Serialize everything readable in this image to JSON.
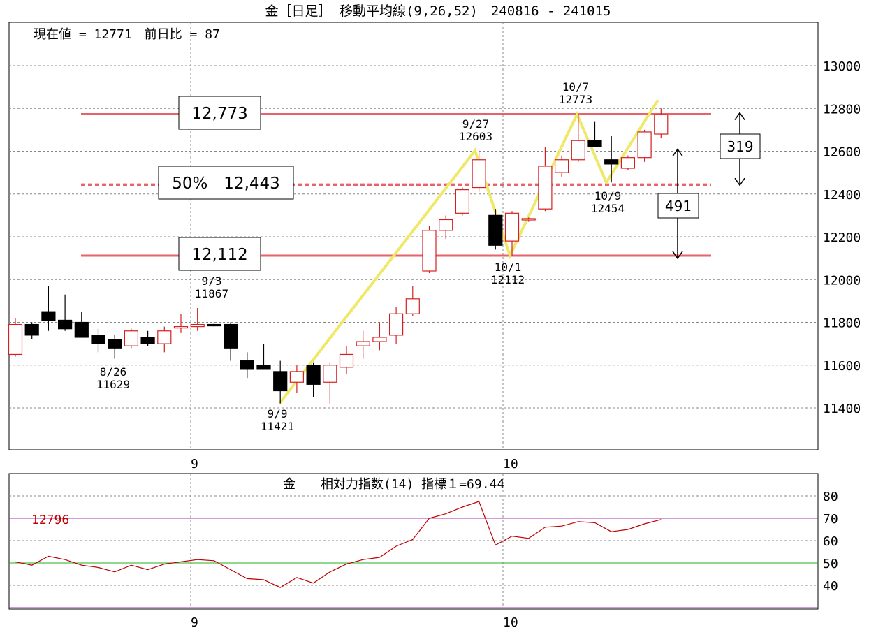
{
  "chart_data": [
    {
      "type": "candlestick",
      "title": "金［日足］ 移動平均線(9,26,52)　240816 - 241015",
      "header_info": "現在値 = 12771　前日比 = 87",
      "ylim": [
        11200,
        13200
      ],
      "yticks": [
        "11400",
        "11600",
        "11800",
        "12000",
        "12200",
        "12400",
        "12600",
        "12800",
        "13000"
      ],
      "ytick_values": [
        11400,
        11600,
        11800,
        12000,
        12200,
        12400,
        12600,
        12800,
        13000
      ],
      "xtick_labels": [
        "9",
        "10"
      ],
      "grid": true,
      "candles": [
        {
          "o": 11650,
          "h": 11820,
          "l": 11640,
          "c": 11790
        },
        {
          "o": 11790,
          "h": 11800,
          "l": 11720,
          "c": 11740
        },
        {
          "o": 11850,
          "h": 11970,
          "l": 11760,
          "c": 11810
        },
        {
          "o": 11810,
          "h": 11930,
          "l": 11760,
          "c": 11770
        },
        {
          "o": 11800,
          "h": 11850,
          "l": 11730,
          "c": 11730
        },
        {
          "o": 11740,
          "h": 11770,
          "l": 11660,
          "c": 11700
        },
        {
          "o": 11720,
          "h": 11740,
          "l": 11630,
          "c": 11680
        },
        {
          "o": 11690,
          "h": 11770,
          "l": 11680,
          "c": 11760
        },
        {
          "o": 11730,
          "h": 11760,
          "l": 11690,
          "c": 11700
        },
        {
          "o": 11700,
          "h": 11780,
          "l": 11660,
          "c": 11760
        },
        {
          "o": 11780,
          "h": 11840,
          "l": 11750,
          "c": 11780
        },
        {
          "o": 11780,
          "h": 11867,
          "l": 11760,
          "c": 11790
        },
        {
          "o": 11790,
          "h": 11800,
          "l": 11780,
          "c": 11785
        },
        {
          "o": 11790,
          "h": 11800,
          "l": 11620,
          "c": 11680
        },
        {
          "o": 11620,
          "h": 11660,
          "l": 11540,
          "c": 11580
        },
        {
          "o": 11600,
          "h": 11700,
          "l": 11580,
          "c": 11580
        },
        {
          "o": 11570,
          "h": 11620,
          "l": 11421,
          "c": 11480
        },
        {
          "o": 11520,
          "h": 11600,
          "l": 11470,
          "c": 11570
        },
        {
          "o": 11600,
          "h": 11610,
          "l": 11450,
          "c": 11510
        },
        {
          "o": 11520,
          "h": 11610,
          "l": 11420,
          "c": 11600
        },
        {
          "o": 11590,
          "h": 11690,
          "l": 11560,
          "c": 11650
        },
        {
          "o": 11690,
          "h": 11760,
          "l": 11630,
          "c": 11710
        },
        {
          "o": 11710,
          "h": 11800,
          "l": 11670,
          "c": 11730
        },
        {
          "o": 11740,
          "h": 11870,
          "l": 11700,
          "c": 11840
        },
        {
          "o": 11840,
          "h": 11970,
          "l": 11830,
          "c": 11910
        },
        {
          "o": 12040,
          "h": 12250,
          "l": 12030,
          "c": 12230
        },
        {
          "o": 12230,
          "h": 12300,
          "l": 12190,
          "c": 12280
        },
        {
          "o": 12310,
          "h": 12430,
          "l": 12300,
          "c": 12420
        },
        {
          "o": 12430,
          "h": 12603,
          "l": 12410,
          "c": 12560
        },
        {
          "o": 12300,
          "h": 12330,
          "l": 12140,
          "c": 12160
        },
        {
          "o": 12180,
          "h": 12320,
          "l": 12112,
          "c": 12310
        },
        {
          "o": 12280,
          "h": 12290,
          "l": 12270,
          "c": 12285
        },
        {
          "o": 12330,
          "h": 12620,
          "l": 12320,
          "c": 12530
        },
        {
          "o": 12500,
          "h": 12580,
          "l": 12480,
          "c": 12560
        },
        {
          "o": 12560,
          "h": 12773,
          "l": 12550,
          "c": 12650
        },
        {
          "o": 12650,
          "h": 12740,
          "l": 12640,
          "c": 12620
        },
        {
          "o": 12560,
          "h": 12670,
          "l": 12454,
          "c": 12540
        },
        {
          "o": 12520,
          "h": 12580,
          "l": 12510,
          "c": 12570
        },
        {
          "o": 12570,
          "h": 12700,
          "l": 12550,
          "c": 12690
        },
        {
          "o": 12680,
          "h": 12800,
          "l": 12660,
          "c": 12771
        }
      ],
      "annotations": [
        {
          "date": "8/26",
          "value": "11629"
        },
        {
          "date": "9/3",
          "value": "11867"
        },
        {
          "date": "9/9",
          "value": "11421"
        },
        {
          "date": "9/27",
          "value": "12603"
        },
        {
          "date": "10/1",
          "value": "12112"
        },
        {
          "date": "10/7",
          "value": "12773"
        },
        {
          "date": "10/9",
          "value": "12454"
        }
      ],
      "zigzag": [
        11421,
        12603,
        12112,
        12773,
        12454,
        12840
      ],
      "levels": [
        {
          "label": "12,773",
          "value": 12773,
          "style": "solid"
        },
        {
          "label": "50%　12,443",
          "value": 12443,
          "style": "dashed"
        },
        {
          "label": "12,112",
          "value": 12112,
          "style": "solid"
        }
      ],
      "ranges": [
        {
          "label": "319",
          "from": 12454,
          "to": 12773
        },
        {
          "label": "491",
          "from": 12112,
          "to": 12603
        }
      ]
    },
    {
      "type": "line",
      "title": "金　　相対力指数(14) 指標１=69.44",
      "ylim": [
        30,
        90
      ],
      "yticks": [
        "40",
        "50",
        "60",
        "70",
        "80"
      ],
      "ytick_values": [
        40,
        50,
        60,
        70,
        80
      ],
      "xtick_labels": [
        "9",
        "10"
      ],
      "hlines": [
        50,
        70
      ],
      "side_note": "12796",
      "values": [
        50.5,
        49,
        53,
        51.5,
        49,
        48,
        46,
        49,
        47,
        49.5,
        50.5,
        51.5,
        51,
        47,
        43,
        42.5,
        39,
        43.5,
        41,
        46,
        49.5,
        51.5,
        52.5,
        57.5,
        60.5,
        70,
        72,
        75,
        77.5,
        58,
        62,
        61,
        66,
        66.5,
        68.5,
        68,
        64,
        65,
        67.5,
        69.44
      ]
    }
  ],
  "colors": {
    "frame": "#000000",
    "grid": "#888888",
    "up_candle": "#d42020",
    "down_candle": "#000000",
    "level_line": "#e8626a",
    "zigzag": "#f0e868",
    "rsi_line": "#c00000",
    "rsi_50": "#20b020",
    "rsi_70": "#b030b0",
    "side_note": "#c00000"
  }
}
